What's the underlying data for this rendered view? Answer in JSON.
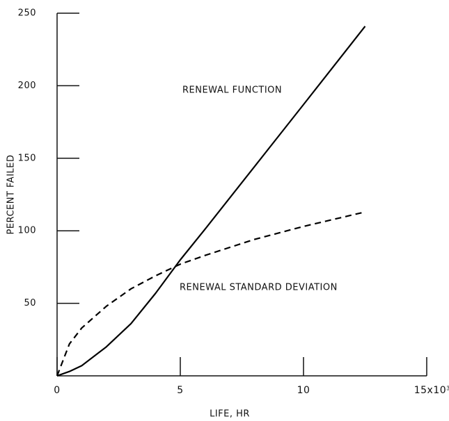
{
  "chart_data": {
    "type": "line",
    "x_label": "LIFE, HR",
    "y_label": "PERCENT FAILED",
    "x": [
      0,
      0.5,
      1,
      2,
      3,
      4,
      5,
      6,
      8,
      10,
      12.5
    ],
    "series": [
      {
        "name": "RENEWAL FUNCTION",
        "color": "#000000",
        "line_style": "solid",
        "values": [
          0,
          3,
          7,
          20,
          36,
          57,
          80,
          101,
          144,
          187,
          241
        ]
      },
      {
        "name": "RENEWAL STANDARD DEVIATION",
        "color": "#000000",
        "line_style": "dashed",
        "values": [
          0,
          22,
          33,
          48,
          60,
          69,
          77,
          83,
          94,
          103,
          113
        ]
      }
    ],
    "xlim": [
      0,
      15
    ],
    "ylim": [
      0,
      250
    ],
    "xticks": [
      0,
      5,
      10,
      {
        "value": 15,
        "label": "15x10³"
      }
    ],
    "yticks": [
      50,
      100,
      150,
      200,
      250
    ],
    "grid": false
  }
}
